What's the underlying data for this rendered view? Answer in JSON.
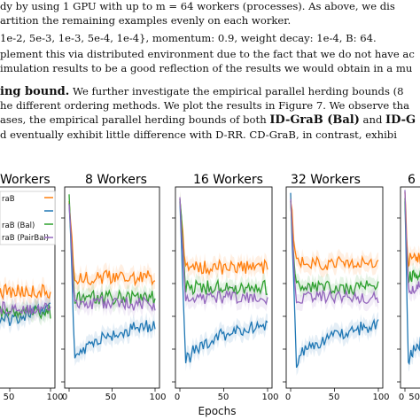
{
  "text": {
    "line1": "dy by using 1 GPU with up to m = 64 workers (processes). As above, we dis",
    "line2": "artition the remaining examples evenly on each worker.",
    "line3": "1e-2, 5e-3, 1e-3, 5e-4, 1e-4}, momentum: 0.9, weight decay: 1e-4, B: 64.",
    "line4": "plement this via distributed environment due to the fact that we do not have ac",
    "line5": "imulation results to be a good reflection of the results we would obtain in a mu",
    "line6_bold": "ing bound.",
    "line6_rest": "  We further investigate the empirical parallel herding bounds (8",
    "line7": "he different ordering methods. We plot the results in Figure 7. We observe tha",
    "line8_pre": "ases, the empirical parallel herding bounds of both ",
    "line8_b1": "ID-GraB (Bal)",
    "line8_mid": " and ",
    "line8_b2": "ID-G",
    "line9": "d eventually exhibit little difference with D-RR. CD-GraB, in contrast, exhibi"
  },
  "chart_data": {
    "type": "line",
    "xlabel": "Epochs",
    "panels": [
      {
        "title": "Workers"
      },
      {
        "title": "8 Workers"
      },
      {
        "title": "16 Workers"
      },
      {
        "title": "32 Workers"
      },
      {
        "title": "6"
      }
    ],
    "x_ticks": [
      "50",
      "100",
      "0",
      "50",
      "100",
      "0",
      "50",
      "100",
      "0",
      "50",
      "100",
      "0",
      "50"
    ],
    "legend": [
      "raB",
      "",
      "raB (Bal)",
      "raB (PairBal)"
    ],
    "series_colors": [
      "#1f77b4",
      "#ff7f0e",
      "#2ca02c",
      "#9467bd"
    ],
    "grid": false
  }
}
